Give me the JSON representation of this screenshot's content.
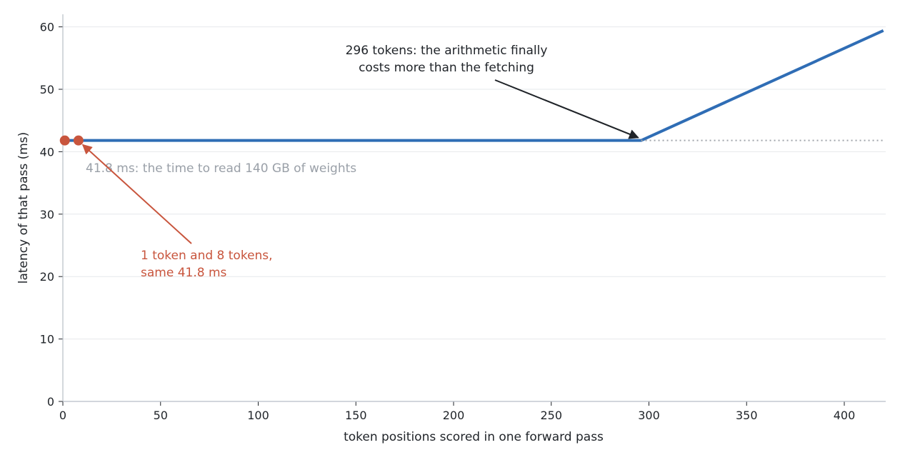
{
  "chart_data": {
    "type": "line",
    "xlabel": "token positions scored in one forward pass",
    "ylabel": "latency of that pass (ms)",
    "xlim": [
      0,
      420
    ],
    "ylim": [
      0,
      62
    ],
    "x_ticks": [
      "0",
      "50",
      "100",
      "150",
      "200",
      "250",
      "300",
      "350",
      "400"
    ],
    "y_ticks": [
      "0",
      "10",
      "20",
      "30",
      "40",
      "50",
      "60"
    ],
    "grid": "horizontal",
    "series": [
      {
        "x": [
          0,
          296,
          420
        ],
        "y": [
          41.8,
          41.8,
          59.4
        ],
        "color": "#2f6db5",
        "style": "solid"
      },
      {
        "x": [
          296,
          420
        ],
        "y": [
          41.8,
          41.8
        ],
        "color": "#a0a4aa",
        "style": "dotted"
      }
    ],
    "points": [
      {
        "x": 1,
        "y": 41.8,
        "color": "#c8553d"
      },
      {
        "x": 8,
        "y": 41.8,
        "color": "#c8553d"
      }
    ],
    "annotations": [
      {
        "lines": [
          "296 tokens: the arithmetic finally",
          "costs more than the fetching"
        ],
        "point": [
          296,
          41.8
        ],
        "color": "#1f2328"
      },
      {
        "lines": [
          "41.8 ms: the time to read 140 GB of weights"
        ],
        "color": "#9aa0a8"
      },
      {
        "lines": [
          "1 token and 8 tokens,",
          "same 41.8 ms"
        ],
        "point": [
          8,
          41.8
        ],
        "color": "#c8553d"
      }
    ]
  }
}
